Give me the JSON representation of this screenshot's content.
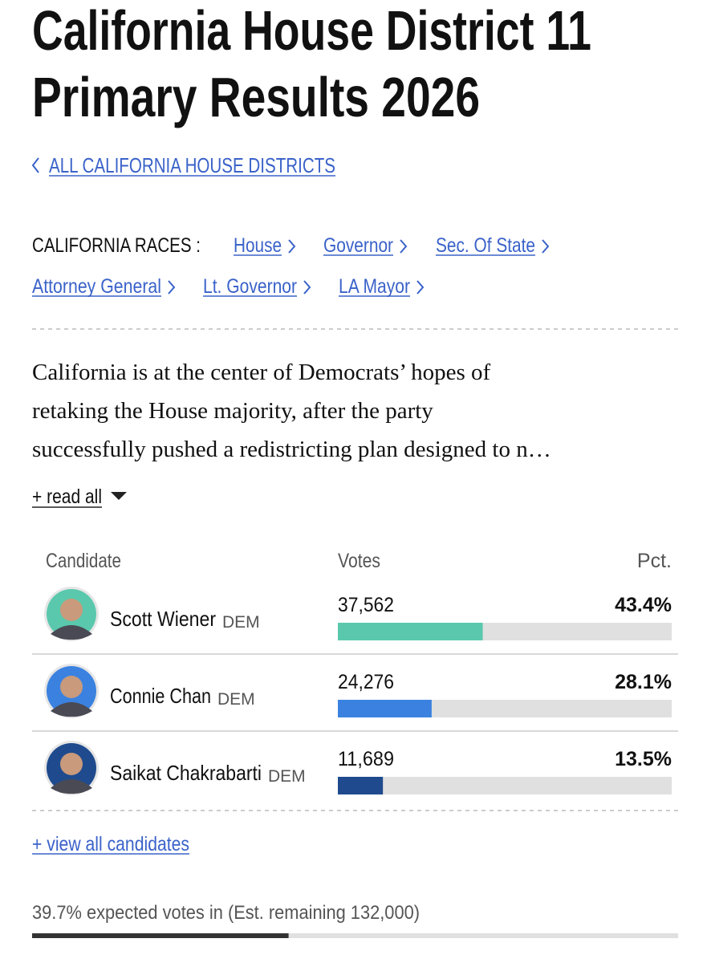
{
  "header": {
    "title_lines": [
      "California House District 11",
      "Primary Results 2026"
    ],
    "back_link": "ALL CALIFORNIA HOUSE DISTRICTS"
  },
  "races_nav": {
    "label": "CALIFORNIA RACES :",
    "links": [
      "House",
      "Governor",
      "Sec. Of State",
      "Attorney General",
      "Lt. Governor",
      "LA Mayor"
    ]
  },
  "summary": {
    "lines": [
      "California is at the center of Democrats’ hopes of",
      "retaking the House majority, after the party",
      "successfully pushed a redistricting plan designed to n…"
    ],
    "read_all": "+ read all"
  },
  "results": {
    "columns": [
      "Candidate",
      "Votes",
      "Pct."
    ],
    "candidates": [
      {
        "name": "Scott Wiener",
        "party": "DEM",
        "votes": "37,562",
        "pct": 43.4,
        "pct_label": "43.4%",
        "color": "#5ac8ad"
      },
      {
        "name": "Connie Chan",
        "party": "DEM",
        "votes": "24,276",
        "pct": 28.1,
        "pct_label": "28.1%",
        "color": "#3b82e0"
      },
      {
        "name": "Saikat Chakrabarti",
        "party": "DEM",
        "votes": "11,689",
        "pct": 13.5,
        "pct_label": "13.5%",
        "color": "#1f4b8e"
      }
    ],
    "view_all": "+ view all candidates"
  },
  "reporting": {
    "text": "39.7% expected votes in (Est. remaining 132,000)",
    "expected_pct": 39.7
  }
}
